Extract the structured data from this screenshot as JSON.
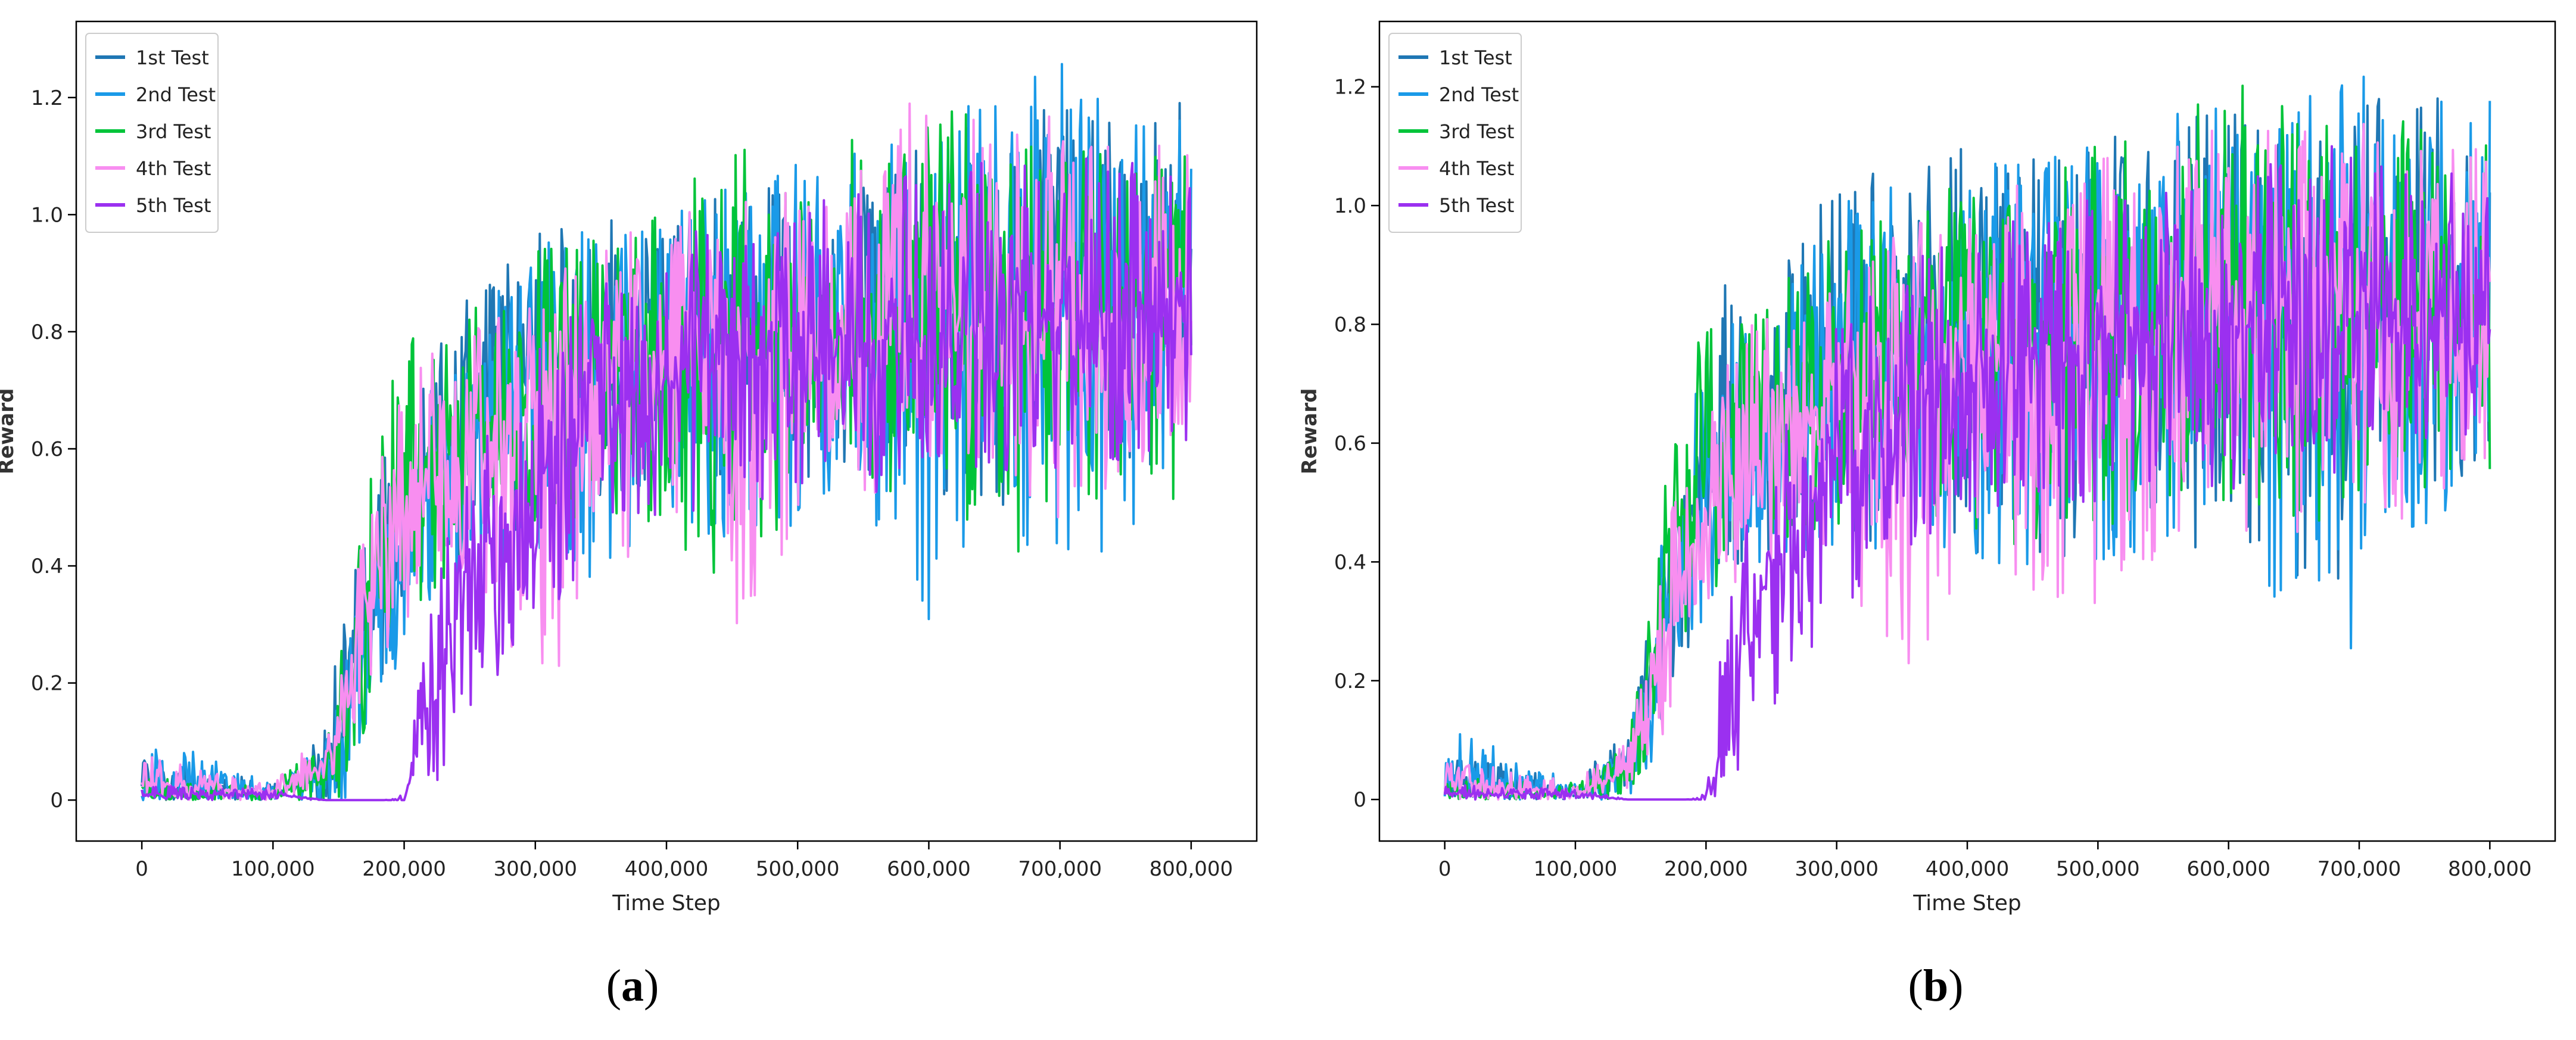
{
  "series_colors": [
    "#1f77b4",
    "#1a9ae8",
    "#00c43a",
    "#f88ef0",
    "#9b30f0"
  ],
  "chart_data": [
    {
      "panel": "a",
      "caption": "a",
      "type": "line",
      "xlabel": "Time Step",
      "ylabel": "Reward",
      "xlim": [
        -50000,
        850000
      ],
      "ylim": [
        -0.07,
        1.33
      ],
      "xticks": [
        0,
        100000,
        200000,
        300000,
        400000,
        500000,
        600000,
        700000,
        800000
      ],
      "xtick_labels": [
        "0",
        "100,000",
        "200,000",
        "300,000",
        "400,000",
        "500,000",
        "600,000",
        "700,000",
        "800,000"
      ],
      "yticks": [
        0,
        0.2,
        0.4,
        0.6,
        0.8,
        1.0,
        1.2
      ],
      "ytick_labels": [
        "0",
        "0.2",
        "0.4",
        "0.6",
        "0.8",
        "1.0",
        "1.2"
      ],
      "legend_position": "top-left",
      "series": [
        {
          "name": "1st Test",
          "x": [
            0,
            50000,
            100000,
            140000,
            155000,
            170000,
            185000,
            200000,
            220000,
            250000,
            300000,
            350000,
            400000,
            450000,
            500000,
            550000,
            600000,
            650000,
            700000,
            750000,
            800000
          ],
          "y": [
            0.02,
            0.02,
            0.01,
            0.05,
            0.15,
            0.3,
            0.42,
            0.5,
            0.58,
            0.64,
            0.72,
            0.75,
            0.77,
            0.78,
            0.8,
            0.81,
            0.82,
            0.83,
            0.84,
            0.85,
            0.86
          ],
          "max": [
            0.07,
            0.06,
            0.03,
            0.12,
            0.38,
            0.5,
            0.6,
            0.66,
            0.75,
            0.88,
            0.98,
            1.0,
            1.02,
            1.04,
            1.06,
            1.08,
            1.12,
            1.25,
            1.2,
            1.15,
            1.21
          ],
          "min": [
            0.0,
            0.0,
            0.0,
            0.0,
            0.0,
            0.1,
            0.22,
            0.3,
            0.36,
            0.42,
            0.48,
            0.5,
            0.52,
            0.52,
            0.55,
            0.55,
            0.52,
            0.5,
            0.5,
            0.55,
            0.6
          ]
        },
        {
          "name": "2nd Test",
          "x": [
            0,
            50000,
            100000,
            140000,
            155000,
            170000,
            185000,
            200000,
            220000,
            250000,
            300000,
            350000,
            400000,
            450000,
            500000,
            550000,
            600000,
            650000,
            700000,
            750000,
            800000
          ],
          "y": [
            0.02,
            0.02,
            0.01,
            0.04,
            0.12,
            0.26,
            0.38,
            0.46,
            0.55,
            0.62,
            0.7,
            0.74,
            0.76,
            0.77,
            0.79,
            0.8,
            0.8,
            0.82,
            0.83,
            0.84,
            0.85
          ],
          "max": [
            0.1,
            0.08,
            0.03,
            0.1,
            0.3,
            0.45,
            0.55,
            0.62,
            0.72,
            0.82,
            0.95,
            0.98,
            1.0,
            1.05,
            1.1,
            1.12,
            1.2,
            1.22,
            1.27,
            1.15,
            1.2
          ],
          "min": [
            0.0,
            0.0,
            0.0,
            0.0,
            0.0,
            0.06,
            0.18,
            0.26,
            0.32,
            0.38,
            0.25,
            0.4,
            0.45,
            0.45,
            0.45,
            0.5,
            0.26,
            0.45,
            0.28,
            0.45,
            0.55
          ]
        },
        {
          "name": "3rd Test",
          "x": [
            0,
            50000,
            100000,
            140000,
            155000,
            170000,
            185000,
            200000,
            220000,
            250000,
            300000,
            350000,
            400000,
            450000,
            500000,
            550000,
            600000,
            650000,
            700000,
            750000,
            800000
          ],
          "y": [
            0.01,
            0.01,
            0.01,
            0.04,
            0.14,
            0.32,
            0.44,
            0.52,
            0.58,
            0.63,
            0.7,
            0.74,
            0.76,
            0.78,
            0.8,
            0.81,
            0.82,
            0.83,
            0.84,
            0.84,
            0.85
          ],
          "max": [
            0.04,
            0.03,
            0.03,
            0.1,
            0.3,
            0.5,
            0.7,
            0.8,
            0.78,
            0.85,
            0.95,
            0.98,
            1.02,
            1.13,
            1.08,
            1.17,
            1.21,
            1.15,
            1.16,
            1.12,
            1.1
          ],
          "min": [
            0.0,
            0.0,
            0.0,
            0.0,
            0.0,
            0.12,
            0.25,
            0.3,
            0.35,
            0.4,
            0.45,
            0.5,
            0.45,
            0.35,
            0.5,
            0.5,
            0.55,
            0.37,
            0.5,
            0.52,
            0.46
          ]
        },
        {
          "name": "4th Test",
          "x": [
            0,
            50000,
            100000,
            140000,
            155000,
            170000,
            185000,
            200000,
            220000,
            250000,
            300000,
            350000,
            400000,
            450000,
            500000,
            550000,
            600000,
            650000,
            700000,
            750000,
            800000
          ],
          "y": [
            0.03,
            0.02,
            0.01,
            0.06,
            0.15,
            0.3,
            0.42,
            0.5,
            0.56,
            0.6,
            0.68,
            0.72,
            0.75,
            0.76,
            0.78,
            0.79,
            0.8,
            0.81,
            0.82,
            0.82,
            0.83
          ],
          "max": [
            0.08,
            0.05,
            0.03,
            0.12,
            0.26,
            0.48,
            0.6,
            0.7,
            0.81,
            0.8,
            0.9,
            0.95,
            1.0,
            1.02,
            1.05,
            1.1,
            1.23,
            1.15,
            1.18,
            1.14,
            1.12
          ],
          "min": [
            0.0,
            0.0,
            0.0,
            0.02,
            0.05,
            0.15,
            0.25,
            0.3,
            0.35,
            0.4,
            0.12,
            0.42,
            0.4,
            0.28,
            0.45,
            0.5,
            0.55,
            0.5,
            0.48,
            0.55,
            0.6
          ]
        },
        {
          "name": "5th Test",
          "x": [
            0,
            50000,
            100000,
            140000,
            155000,
            170000,
            185000,
            200000,
            210000,
            220000,
            250000,
            300000,
            350000,
            400000,
            450000,
            500000,
            550000,
            600000,
            650000,
            700000,
            750000,
            800000
          ],
          "y": [
            0.01,
            0.01,
            0.01,
            0.0,
            0.0,
            0.0,
            0.0,
            0.0,
            0.08,
            0.18,
            0.38,
            0.55,
            0.66,
            0.72,
            0.75,
            0.77,
            0.78,
            0.79,
            0.8,
            0.81,
            0.82,
            0.82
          ],
          "max": [
            0.03,
            0.02,
            0.02,
            0.0,
            0.0,
            0.0,
            0.0,
            0.01,
            0.2,
            0.35,
            0.6,
            0.78,
            0.88,
            0.95,
            1.0,
            1.05,
            1.06,
            1.08,
            1.1,
            1.12,
            1.1,
            1.1
          ],
          "min": [
            0.0,
            0.0,
            0.0,
            0.0,
            0.0,
            0.0,
            0.0,
            0.0,
            0.0,
            0.0,
            0.15,
            0.3,
            0.42,
            0.48,
            0.5,
            0.52,
            0.52,
            0.55,
            0.55,
            0.55,
            0.58,
            0.6
          ]
        }
      ]
    },
    {
      "panel": "b",
      "caption": "b",
      "type": "line",
      "xlabel": "Time Step",
      "ylabel": "Reward",
      "xlim": [
        -50000,
        850000
      ],
      "ylim": [
        -0.07,
        1.31
      ],
      "xticks": [
        0,
        100000,
        200000,
        300000,
        400000,
        500000,
        600000,
        700000,
        800000
      ],
      "xtick_labels": [
        "0",
        "100,000",
        "200,000",
        "300,000",
        "400,000",
        "500,000",
        "600,000",
        "700,000",
        "800,000"
      ],
      "yticks": [
        0,
        0.2,
        0.4,
        0.6,
        0.8,
        1.0,
        1.2
      ],
      "ytick_labels": [
        "0",
        "0.2",
        "0.4",
        "0.6",
        "0.8",
        "1.0",
        "1.2"
      ],
      "legend_position": "top-left",
      "series": [
        {
          "name": "1st Test",
          "x": [
            0,
            50000,
            100000,
            140000,
            155000,
            170000,
            185000,
            200000,
            220000,
            250000,
            300000,
            350000,
            400000,
            450000,
            500000,
            550000,
            600000,
            650000,
            700000,
            750000,
            800000
          ],
          "y": [
            0.02,
            0.02,
            0.01,
            0.06,
            0.18,
            0.34,
            0.46,
            0.52,
            0.6,
            0.66,
            0.74,
            0.77,
            0.79,
            0.8,
            0.81,
            0.82,
            0.83,
            0.84,
            0.85,
            0.85,
            0.86
          ],
          "max": [
            0.07,
            0.06,
            0.03,
            0.12,
            0.3,
            0.55,
            0.68,
            0.75,
            0.95,
            0.9,
            1.05,
            1.08,
            1.12,
            1.1,
            1.12,
            1.14,
            1.16,
            1.18,
            1.2,
            1.18,
            1.24
          ],
          "min": [
            0.0,
            0.0,
            0.0,
            0.0,
            0.02,
            0.1,
            0.22,
            0.3,
            0.36,
            0.42,
            0.45,
            0.42,
            0.4,
            0.4,
            0.42,
            0.35,
            0.4,
            0.35,
            0.35,
            0.48,
            0.55
          ]
        },
        {
          "name": "2nd Test",
          "x": [
            0,
            50000,
            100000,
            140000,
            155000,
            170000,
            185000,
            200000,
            220000,
            250000,
            300000,
            350000,
            400000,
            450000,
            500000,
            550000,
            600000,
            650000,
            700000,
            750000,
            800000
          ],
          "y": [
            0.02,
            0.02,
            0.01,
            0.05,
            0.15,
            0.3,
            0.42,
            0.5,
            0.58,
            0.64,
            0.72,
            0.76,
            0.78,
            0.79,
            0.8,
            0.81,
            0.82,
            0.83,
            0.83,
            0.84,
            0.85
          ],
          "max": [
            0.15,
            0.07,
            0.03,
            0.1,
            0.28,
            0.5,
            0.65,
            0.72,
            0.82,
            0.88,
            1.0,
            1.05,
            1.08,
            1.1,
            1.12,
            1.15,
            1.18,
            1.2,
            1.22,
            1.2,
            1.19
          ],
          "min": [
            0.0,
            0.0,
            0.0,
            0.0,
            0.0,
            0.08,
            0.2,
            0.28,
            0.35,
            0.4,
            0.42,
            0.4,
            0.4,
            0.38,
            0.4,
            0.42,
            0.35,
            0.33,
            0.22,
            0.45,
            0.55
          ]
        },
        {
          "name": "3rd Test",
          "x": [
            0,
            50000,
            100000,
            140000,
            155000,
            170000,
            185000,
            200000,
            220000,
            250000,
            300000,
            350000,
            400000,
            450000,
            500000,
            550000,
            600000,
            650000,
            700000,
            750000,
            800000
          ],
          "y": [
            0.01,
            0.01,
            0.01,
            0.06,
            0.2,
            0.38,
            0.5,
            0.56,
            0.62,
            0.66,
            0.72,
            0.76,
            0.78,
            0.79,
            0.81,
            0.82,
            0.83,
            0.84,
            0.84,
            0.85,
            0.85
          ],
          "max": [
            0.04,
            0.03,
            0.03,
            0.1,
            0.32,
            0.55,
            0.7,
            0.82,
            0.8,
            0.85,
            0.96,
            1.0,
            1.05,
            1.08,
            1.1,
            1.15,
            1.22,
            1.18,
            1.15,
            1.15,
            1.12
          ],
          "min": [
            0.0,
            0.0,
            0.0,
            0.0,
            0.05,
            0.15,
            0.28,
            0.32,
            0.38,
            0.42,
            0.45,
            0.48,
            0.45,
            0.42,
            0.45,
            0.48,
            0.5,
            0.45,
            0.5,
            0.48,
            0.54
          ]
        },
        {
          "name": "4th Test",
          "x": [
            0,
            50000,
            100000,
            140000,
            155000,
            170000,
            185000,
            200000,
            220000,
            250000,
            300000,
            350000,
            400000,
            450000,
            500000,
            550000,
            600000,
            650000,
            700000,
            750000,
            800000
          ],
          "y": [
            0.03,
            0.02,
            0.01,
            0.05,
            0.14,
            0.28,
            0.4,
            0.48,
            0.55,
            0.6,
            0.68,
            0.72,
            0.75,
            0.76,
            0.78,
            0.79,
            0.8,
            0.81,
            0.82,
            0.82,
            0.83
          ],
          "max": [
            0.07,
            0.05,
            0.03,
            0.1,
            0.25,
            0.45,
            0.6,
            0.68,
            0.78,
            0.82,
            0.92,
            0.96,
            1.0,
            1.05,
            1.08,
            1.1,
            1.18,
            1.12,
            1.15,
            1.12,
            1.1
          ],
          "min": [
            0.0,
            0.0,
            0.0,
            0.02,
            0.05,
            0.12,
            0.22,
            0.3,
            0.35,
            0.38,
            0.3,
            0.18,
            0.38,
            0.35,
            0.32,
            0.4,
            0.45,
            0.4,
            0.42,
            0.5,
            0.58
          ]
        },
        {
          "name": "5th Test",
          "x": [
            0,
            50000,
            100000,
            140000,
            155000,
            170000,
            185000,
            200000,
            210000,
            220000,
            250000,
            300000,
            350000,
            400000,
            450000,
            500000,
            550000,
            600000,
            650000,
            700000,
            750000,
            800000
          ],
          "y": [
            0.01,
            0.01,
            0.01,
            0.0,
            0.0,
            0.0,
            0.0,
            0.0,
            0.08,
            0.2,
            0.4,
            0.56,
            0.66,
            0.72,
            0.75,
            0.77,
            0.78,
            0.79,
            0.8,
            0.81,
            0.81,
            0.82
          ],
          "max": [
            0.03,
            0.02,
            0.02,
            0.0,
            0.0,
            0.0,
            0.0,
            0.01,
            0.22,
            0.38,
            0.62,
            0.8,
            0.9,
            0.95,
            1.0,
            1.02,
            1.05,
            1.08,
            1.1,
            1.1,
            1.1,
            1.1
          ],
          "min": [
            0.0,
            0.0,
            0.0,
            0.0,
            0.0,
            0.0,
            0.0,
            0.0,
            0.0,
            0.0,
            0.15,
            0.3,
            0.42,
            0.46,
            0.48,
            0.5,
            0.52,
            0.52,
            0.55,
            0.55,
            0.58,
            0.6
          ]
        }
      ]
    }
  ]
}
